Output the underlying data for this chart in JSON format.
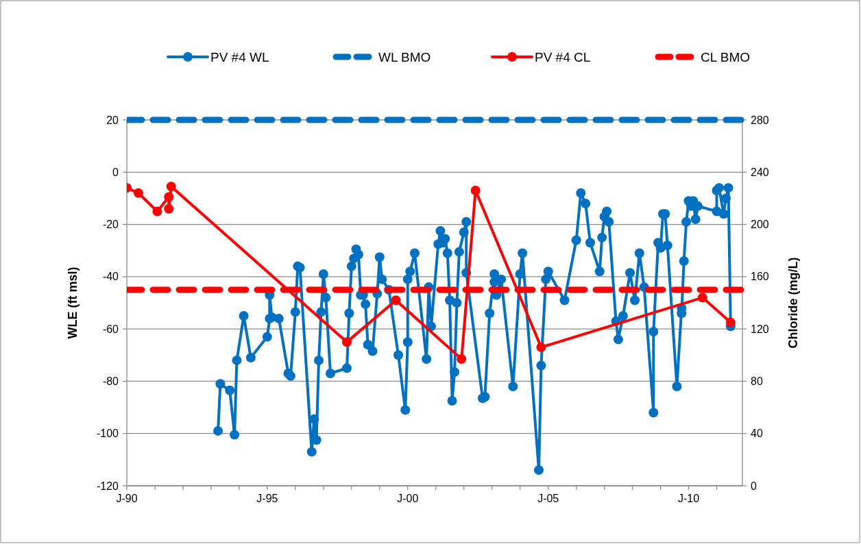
{
  "chart_data": {
    "type": "line",
    "xlim": [
      "1990-01",
      "2011-12"
    ],
    "xticks": [
      {
        "value": "1990-01",
        "label": "J-90"
      },
      {
        "value": "1991-01",
        "label": null
      },
      {
        "value": "1992-01",
        "label": null
      },
      {
        "value": "1993-01",
        "label": null
      },
      {
        "value": "1994-01",
        "label": null
      },
      {
        "value": "1995-01",
        "label": "J-95"
      },
      {
        "value": "1996-01",
        "label": null
      },
      {
        "value": "1997-01",
        "label": null
      },
      {
        "value": "1998-01",
        "label": null
      },
      {
        "value": "1999-01",
        "label": null
      },
      {
        "value": "2000-01",
        "label": "J-00"
      },
      {
        "value": "2001-01",
        "label": null
      },
      {
        "value": "2002-01",
        "label": null
      },
      {
        "value": "2003-01",
        "label": null
      },
      {
        "value": "2004-01",
        "label": null
      },
      {
        "value": "2005-01",
        "label": "J-05"
      },
      {
        "value": "2006-01",
        "label": null
      },
      {
        "value": "2007-01",
        "label": null
      },
      {
        "value": "2008-01",
        "label": null
      },
      {
        "value": "2009-01",
        "label": null
      },
      {
        "value": "2010-01",
        "label": "J-10"
      },
      {
        "value": "2011-01",
        "label": null
      }
    ],
    "ylim": [
      -120,
      20
    ],
    "yticks": [
      -120,
      -100,
      -80,
      -60,
      -40,
      -20,
      0,
      20
    ],
    "y2lim": [
      0,
      280
    ],
    "y2ticks": [
      0,
      40,
      80,
      120,
      160,
      200,
      240,
      280
    ],
    "ylabel": "WLE (ft msl)",
    "y2label": "Chloride (mg/L)",
    "grid": "y",
    "legend": "top",
    "series": [
      {
        "name": "PV #4 WL",
        "color": "#0070c0",
        "marker": "circle",
        "line_style": "solid",
        "x": [
          "1993-04",
          "1993-05",
          "1993-09",
          "1993-11",
          "1993-12",
          "1994-03",
          "1994-06",
          "1995-01",
          "1995-02",
          "1995-02",
          "1995-03",
          "1995-06",
          "1995-10",
          "1995-11",
          "1996-01",
          "1996-02",
          "1996-03",
          "1996-08",
          "1996-09",
          "1996-10",
          "1996-11",
          "1996-12",
          "1997-01",
          "1997-02",
          "1997-04",
          "1997-11",
          "1997-12",
          "1998-01",
          "1998-02",
          "1998-03",
          "1998-04",
          "1998-05",
          "1998-06",
          "1998-07",
          "1998-08",
          "1998-10",
          "1998-12",
          "1999-01",
          "1999-02",
          "1999-05",
          "1999-09",
          "1999-12",
          "2000-01",
          "2000-01",
          "2000-02",
          "2000-04",
          "2000-09",
          "2000-10",
          "2000-11",
          "2001-02",
          "2001-03",
          "2001-04",
          "2001-05",
          "2001-06",
          "2001-07",
          "2001-08",
          "2001-09",
          "2001-10",
          "2001-11",
          "2002-01",
          "2002-02",
          "2002-02",
          "2002-09",
          "2002-10",
          "2002-12",
          "2003-02",
          "2003-02",
          "2003-03",
          "2003-05",
          "2003-10",
          "2004-01",
          "2004-02",
          "2004-09",
          "2004-10",
          "2004-12",
          "2005-01",
          "2005-08",
          "2006-01",
          "2006-03",
          "2006-05",
          "2006-07",
          "2006-11",
          "2006-12",
          "2007-01",
          "2007-02",
          "2007-03",
          "2007-06",
          "2007-07",
          "2007-09",
          "2007-12",
          "2008-02",
          "2008-04",
          "2008-06",
          "2008-10",
          "2008-10",
          "2008-12",
          "2009-01",
          "2009-02",
          "2009-03",
          "2009-04",
          "2009-08",
          "2009-10",
          "2009-10",
          "2009-11",
          "2009-12",
          "2010-01",
          "2010-02",
          "2010-03",
          "2010-04",
          "2010-05",
          "2011-01",
          "2011-01",
          "2011-02",
          "2011-04",
          "2011-05",
          "2011-06",
          "2011-07"
        ],
        "values": [
          -99,
          -81,
          -83.5,
          -100.5,
          -72,
          -55,
          -71,
          -63,
          -56,
          -47,
          -55.5,
          -56,
          -77,
          -78,
          -53.5,
          -36,
          -36.5,
          -107,
          -94.5,
          -102.5,
          -72,
          -53.5,
          -39,
          -48,
          -77,
          -75,
          -54,
          -36,
          -33,
          -29.5,
          -31.5,
          -47,
          -47,
          -50.5,
          -66,
          -68.5,
          -46.5,
          -32.5,
          -41,
          -45,
          -70,
          -91,
          -65,
          -41,
          -38,
          -31,
          -71.5,
          -44,
          -59,
          -27.5,
          -22.5,
          -27,
          -25.5,
          -31,
          -49,
          -87.5,
          -76.5,
          -50,
          -30.5,
          -23,
          -19,
          -38.5,
          -86.5,
          -86,
          -54,
          -39,
          -42,
          -47,
          -41,
          -82,
          -39,
          -31,
          -114,
          -74,
          -41,
          -38,
          -49,
          -26,
          -8,
          -12,
          -27,
          -38,
          -25,
          -17,
          -15,
          -19,
          -57,
          -64,
          -55,
          -38.5,
          -49,
          -31,
          -44,
          -92,
          -61,
          -27,
          -29,
          -16,
          -16,
          -28,
          -82,
          -52,
          -54,
          -34,
          -19,
          -11,
          -13,
          -11,
          -18,
          -13,
          -15,
          -7,
          -6,
          -16,
          -10,
          -6,
          -59
        ]
      },
      {
        "name": "WL BMO",
        "color": "#0070c0",
        "marker": "none",
        "line_style": "dashed",
        "x": [
          "1990-01",
          "2011-12"
        ],
        "values": [
          20,
          20
        ]
      },
      {
        "name": "PV #4 CL",
        "color": "#ff0000",
        "marker": "circle",
        "line_style": "solid",
        "axis": "y2",
        "x": [
          "1990-01",
          "1990-06",
          "1991-02",
          "1991-07",
          "1991-07",
          "1991-08",
          "1997-11",
          "1999-08",
          "2001-12",
          "2002-06",
          "2004-10",
          "2010-07",
          "2011-07"
        ],
        "values": [
          228,
          224,
          210,
          221,
          212,
          229,
          110,
          142,
          97,
          226,
          106,
          144,
          125
        ]
      },
      {
        "name": "CL BMO",
        "color": "#ff0000",
        "marker": "none",
        "line_style": "dashed",
        "axis": "y2",
        "x": [
          "1990-01",
          "2011-12"
        ],
        "values": [
          150,
          150
        ]
      }
    ]
  }
}
